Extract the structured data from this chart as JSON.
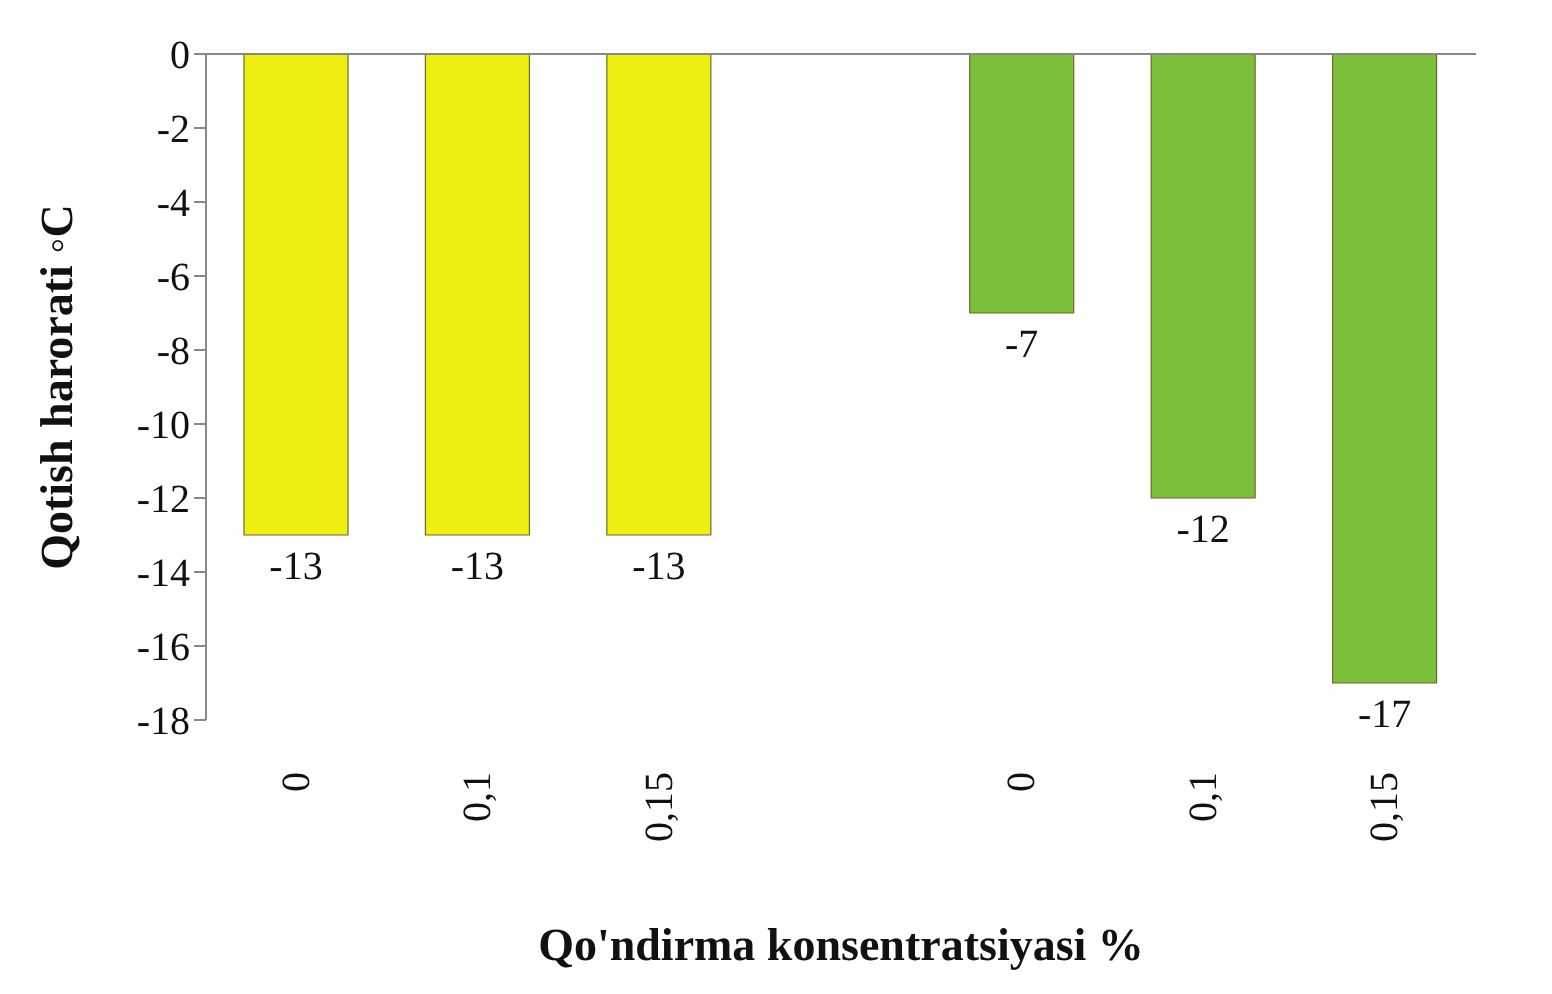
{
  "chart_data": {
    "type": "bar",
    "xlabel": "Qo'ndirma konsentratsiyasi %",
    "ylabel": "Qotish harorati ◦C",
    "categories": [
      "0",
      "0,1",
      "0,15",
      null,
      "0",
      "0,1",
      "0,15"
    ],
    "values": [
      -13,
      -13,
      -13,
      null,
      -7,
      -12,
      -17
    ],
    "colors": [
      "#eeee10",
      "#eeee10",
      "#eeee10",
      "#7cbf3a",
      "#7cbf3a",
      "#7cbf3a",
      "#7cbf3a"
    ],
    "ylim": [
      -18,
      0
    ],
    "yticks": [
      -18,
      -16,
      -14,
      -12,
      -10,
      -8,
      -6,
      -4,
      -2,
      0
    ],
    "data_labels": true,
    "grid": false
  }
}
